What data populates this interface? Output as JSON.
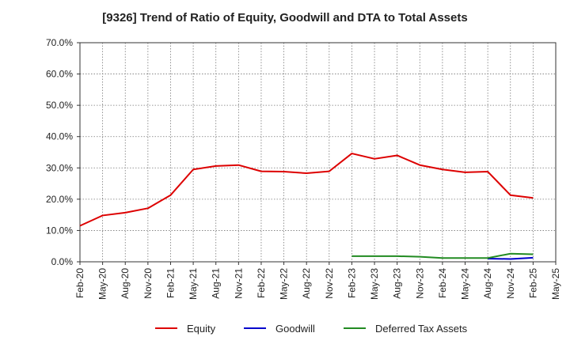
{
  "chart_data": {
    "type": "line",
    "title": "[9326]  Trend of Ratio of Equity, Goodwill and DTA to Total Assets",
    "xlabel": "",
    "ylabel": "",
    "ylim": [
      0,
      70
    ],
    "y_ticks": [
      "0.0%",
      "10.0%",
      "20.0%",
      "30.0%",
      "40.0%",
      "50.0%",
      "60.0%",
      "70.0%"
    ],
    "x_ticks": [
      "Feb-20",
      "May-20",
      "Aug-20",
      "Nov-20",
      "Feb-21",
      "May-21",
      "Aug-21",
      "Nov-21",
      "Feb-22",
      "May-22",
      "Aug-22",
      "Nov-22",
      "Feb-23",
      "May-23",
      "Aug-23",
      "Nov-23",
      "Feb-24",
      "May-24",
      "Aug-24",
      "Nov-24",
      "Feb-25",
      "May-25"
    ],
    "grid": true,
    "legend_position": "bottom",
    "series": [
      {
        "name": "Equity",
        "color": "#dd0000",
        "values": [
          11.5,
          14.8,
          15.7,
          17.1,
          21.3,
          29.5,
          30.6,
          30.9,
          28.9,
          28.8,
          28.3,
          28.9,
          34.6,
          32.9,
          34.0,
          30.9,
          29.5,
          28.6,
          28.8,
          21.3,
          20.4,
          null
        ]
      },
      {
        "name": "Goodwill",
        "color": "#0000cc",
        "values": [
          null,
          null,
          null,
          null,
          null,
          null,
          null,
          null,
          null,
          null,
          null,
          null,
          null,
          null,
          null,
          null,
          null,
          null,
          1.0,
          0.9,
          1.3,
          null
        ]
      },
      {
        "name": "Deferred Tax Assets",
        "color": "#228b22",
        "values": [
          null,
          null,
          null,
          null,
          null,
          null,
          null,
          null,
          null,
          null,
          null,
          null,
          1.8,
          1.8,
          1.8,
          1.6,
          1.2,
          1.2,
          1.2,
          2.6,
          2.4,
          null
        ]
      }
    ]
  }
}
